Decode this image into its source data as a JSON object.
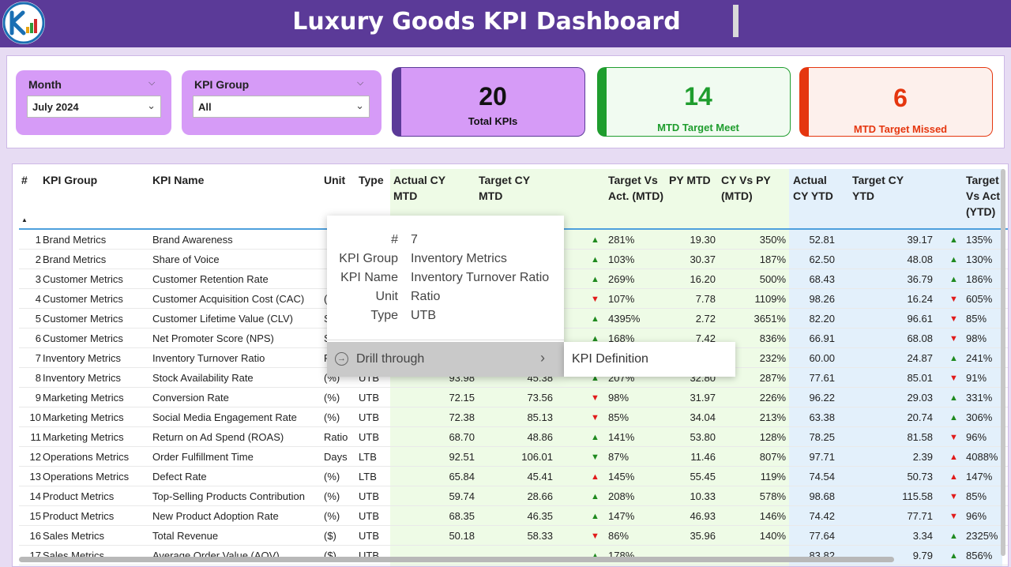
{
  "header": {
    "title": "Luxury Goods KPI Dashboard",
    "logo_icon": "kpi-logo-icon"
  },
  "filters": {
    "month": {
      "label": "Month",
      "value": "July 2024"
    },
    "kpi_group": {
      "label": "KPI Group",
      "value": "All"
    }
  },
  "cards": {
    "total": {
      "value": "20",
      "label": "Total KPIs",
      "color": "#d69bf7",
      "accent": "#5b3a98"
    },
    "meet": {
      "value": "14",
      "label": "MTD Target Meet",
      "color": "#1f9d2e"
    },
    "missed": {
      "value": "6",
      "label": "MTD Target Missed",
      "color": "#e5360f"
    }
  },
  "table": {
    "columns": {
      "num": "#",
      "group": "KPI Group",
      "name": "KPI Name",
      "unit": "Unit",
      "type": "Type",
      "actual_mtd": "Actual CY MTD",
      "target_mtd": "Target CY MTD",
      "tva_mtd": "Target Vs Act. (MTD)",
      "py_mtd": "PY MTD",
      "cyvspy_mtd": "CY Vs PY (MTD)",
      "actual_ytd": "Actual CY YTD",
      "target_ytd": "Target CY YTD",
      "tva_ytd": "Target Vs Act. (YTD)"
    },
    "rows": [
      {
        "num": "1",
        "group": "Brand Metrics",
        "name": "Brand Awareness",
        "unit": "",
        "type": "",
        "actual_mtd": "",
        "target_mtd": "",
        "tva_mtd_dir": "up",
        "tva_mtd": "281%",
        "py_mtd": "19.30",
        "cyvspy_mtd": "350%",
        "actual_ytd": "52.81",
        "target_ytd": "39.17",
        "tva_ytd_dir": "up",
        "tva_ytd": "135%"
      },
      {
        "num": "2",
        "group": "Brand Metrics",
        "name": "Share of Voice",
        "unit": "",
        "type": "",
        "actual_mtd": "",
        "target_mtd": "",
        "tva_mtd_dir": "up",
        "tva_mtd": "103%",
        "py_mtd": "30.37",
        "cyvspy_mtd": "187%",
        "actual_ytd": "62.50",
        "target_ytd": "48.08",
        "tva_ytd_dir": "up",
        "tva_ytd": "130%"
      },
      {
        "num": "3",
        "group": "Customer Metrics",
        "name": "Customer Retention Rate",
        "unit": "",
        "type": "",
        "actual_mtd": "",
        "target_mtd": "",
        "tva_mtd_dir": "up",
        "tva_mtd": "269%",
        "py_mtd": "16.20",
        "cyvspy_mtd": "500%",
        "actual_ytd": "68.43",
        "target_ytd": "36.79",
        "tva_ytd_dir": "up",
        "tva_ytd": "186%"
      },
      {
        "num": "4",
        "group": "Customer Metrics",
        "name": "Customer Acquisition Cost (CAC)",
        "unit": "(",
        "type": "",
        "actual_mtd": "",
        "target_mtd": "",
        "tva_mtd_dir": "down",
        "tva_mtd": "107%",
        "py_mtd": "7.78",
        "cyvspy_mtd": "1109%",
        "actual_ytd": "98.26",
        "target_ytd": "16.24",
        "tva_ytd_dir": "down",
        "tva_ytd": "605%"
      },
      {
        "num": "5",
        "group": "Customer Metrics",
        "name": "Customer Lifetime Value (CLV)",
        "unit": "S",
        "type": "",
        "actual_mtd": "",
        "target_mtd": "",
        "tva_mtd_dir": "up",
        "tva_mtd": "4395%",
        "py_mtd": "2.72",
        "cyvspy_mtd": "3651%",
        "actual_ytd": "82.20",
        "target_ytd": "96.61",
        "tva_ytd_dir": "down",
        "tva_ytd": "85%"
      },
      {
        "num": "6",
        "group": "Customer Metrics",
        "name": "Net Promoter Score (NPS)",
        "unit": "S",
        "type": "",
        "actual_mtd": "",
        "target_mtd": "",
        "tva_mtd_dir": "up",
        "tva_mtd": "168%",
        "py_mtd": "7.42",
        "cyvspy_mtd": "836%",
        "actual_ytd": "66.91",
        "target_ytd": "68.08",
        "tva_ytd_dir": "down",
        "tva_ytd": "98%"
      },
      {
        "num": "7",
        "group": "Inventory Metrics",
        "name": "Inventory Turnover Ratio",
        "unit": "R",
        "type": "",
        "actual_mtd": "",
        "target_mtd": "",
        "tva_mtd_dir": "",
        "tva_mtd": "",
        "py_mtd": "",
        "cyvspy_mtd": "232%",
        "actual_ytd": "60.00",
        "target_ytd": "24.87",
        "tva_ytd_dir": "up",
        "tva_ytd": "241%"
      },
      {
        "num": "8",
        "group": "Inventory Metrics",
        "name": "Stock Availability Rate",
        "unit": "(%)",
        "type": "UTB",
        "actual_mtd": "93.98",
        "target_mtd": "45.38",
        "tva_mtd_dir": "up",
        "tva_mtd": "207%",
        "py_mtd": "32.80",
        "cyvspy_mtd": "287%",
        "actual_ytd": "77.61",
        "target_ytd": "85.01",
        "tva_ytd_dir": "down",
        "tva_ytd": "91%"
      },
      {
        "num": "9",
        "group": "Marketing Metrics",
        "name": "Conversion Rate",
        "unit": "(%)",
        "type": "UTB",
        "actual_mtd": "72.15",
        "target_mtd": "73.56",
        "tva_mtd_dir": "down",
        "tva_mtd": "98%",
        "py_mtd": "31.97",
        "cyvspy_mtd": "226%",
        "actual_ytd": "96.22",
        "target_ytd": "29.03",
        "tva_ytd_dir": "up",
        "tva_ytd": "331%"
      },
      {
        "num": "10",
        "group": "Marketing Metrics",
        "name": "Social Media Engagement Rate",
        "unit": "(%)",
        "type": "UTB",
        "actual_mtd": "72.38",
        "target_mtd": "85.13",
        "tva_mtd_dir": "down",
        "tva_mtd": "85%",
        "py_mtd": "34.04",
        "cyvspy_mtd": "213%",
        "actual_ytd": "63.38",
        "target_ytd": "20.74",
        "tva_ytd_dir": "up",
        "tva_ytd": "306%"
      },
      {
        "num": "11",
        "group": "Marketing Metrics",
        "name": "Return on Ad Spend (ROAS)",
        "unit": "Ratio",
        "type": "UTB",
        "actual_mtd": "68.70",
        "target_mtd": "48.86",
        "tva_mtd_dir": "up",
        "tva_mtd": "141%",
        "py_mtd": "53.80",
        "cyvspy_mtd": "128%",
        "actual_ytd": "78.25",
        "target_ytd": "81.58",
        "tva_ytd_dir": "down",
        "tva_ytd": "96%"
      },
      {
        "num": "12",
        "group": "Operations Metrics",
        "name": "Order Fulfillment Time",
        "unit": "Days",
        "type": "LTB",
        "actual_mtd": "92.51",
        "target_mtd": "106.01",
        "tva_mtd_dir": "up-green-down",
        "tva_mtd": "87%",
        "py_mtd": "11.46",
        "cyvspy_mtd": "807%",
        "actual_ytd": "97.71",
        "target_ytd": "2.39",
        "tva_ytd_dir": "down-red-up",
        "tva_ytd": "4088%"
      },
      {
        "num": "13",
        "group": "Operations Metrics",
        "name": "Defect Rate",
        "unit": "(%)",
        "type": "LTB",
        "actual_mtd": "65.84",
        "target_mtd": "45.41",
        "tva_mtd_dir": "down-red-up",
        "tva_mtd": "145%",
        "py_mtd": "55.45",
        "cyvspy_mtd": "119%",
        "actual_ytd": "74.54",
        "target_ytd": "50.73",
        "tva_ytd_dir": "down-red-up",
        "tva_ytd": "147%"
      },
      {
        "num": "14",
        "group": "Product Metrics",
        "name": "Top-Selling Products Contribution",
        "unit": "(%)",
        "type": "UTB",
        "actual_mtd": "59.74",
        "target_mtd": "28.66",
        "tva_mtd_dir": "up",
        "tva_mtd": "208%",
        "py_mtd": "10.33",
        "cyvspy_mtd": "578%",
        "actual_ytd": "98.68",
        "target_ytd": "115.58",
        "tva_ytd_dir": "down",
        "tva_ytd": "85%"
      },
      {
        "num": "15",
        "group": "Product Metrics",
        "name": "New Product Adoption Rate",
        "unit": "(%)",
        "type": "UTB",
        "actual_mtd": "68.35",
        "target_mtd": "46.35",
        "tva_mtd_dir": "up",
        "tva_mtd": "147%",
        "py_mtd": "46.93",
        "cyvspy_mtd": "146%",
        "actual_ytd": "74.42",
        "target_ytd": "77.71",
        "tva_ytd_dir": "down",
        "tva_ytd": "96%"
      },
      {
        "num": "16",
        "group": "Sales Metrics",
        "name": "Total Revenue",
        "unit": "($)",
        "type": "UTB",
        "actual_mtd": "50.18",
        "target_mtd": "58.33",
        "tva_mtd_dir": "down",
        "tva_mtd": "86%",
        "py_mtd": "35.96",
        "cyvspy_mtd": "140%",
        "actual_ytd": "77.64",
        "target_ytd": "3.34",
        "tva_ytd_dir": "up",
        "tva_ytd": "2325%"
      },
      {
        "num": "17",
        "group": "Sales Metrics",
        "name": "Average Order Value (AOV)",
        "unit": "($)",
        "type": "UTB",
        "actual_mtd": "",
        "target_mtd": "",
        "tva_mtd_dir": "up",
        "tva_mtd": "178%",
        "py_mtd": "",
        "cyvspy_mtd": "",
        "actual_ytd": "83.82",
        "target_ytd": "9.79",
        "tva_ytd_dir": "up",
        "tva_ytd": "856%"
      }
    ]
  },
  "tooltip": {
    "fields": [
      {
        "key": "#",
        "value": "7"
      },
      {
        "key": "KPI Group",
        "value": "Inventory Metrics"
      },
      {
        "key": "KPI Name",
        "value": "Inventory Turnover Ratio"
      },
      {
        "key": "Unit",
        "value": "Ratio"
      },
      {
        "key": "Type",
        "value": "UTB"
      }
    ],
    "drill_label": "Drill through",
    "submenu_item": "KPI Definition"
  },
  "colors": {
    "header_bg": "#5b3a98",
    "mtd_band": "#eefbe6",
    "ytd_band": "#e3f0fb",
    "up": "#1f8a1f",
    "down": "#e11b1b"
  }
}
